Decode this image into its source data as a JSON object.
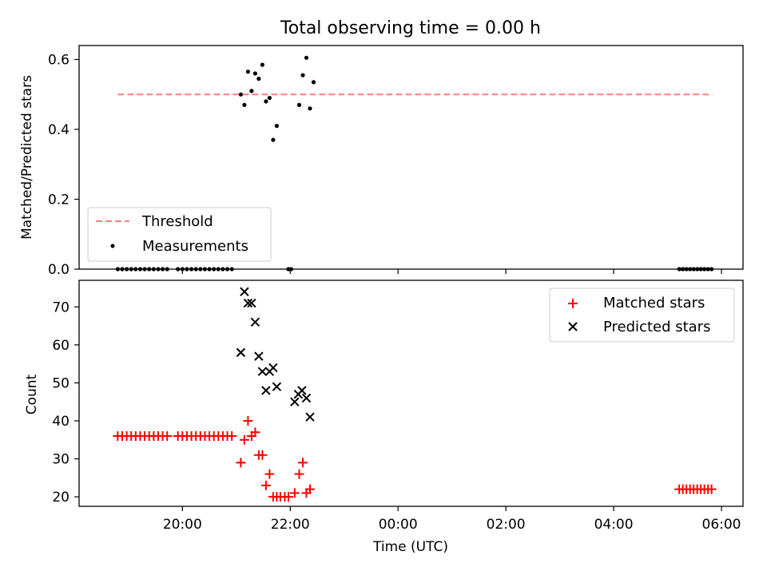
{
  "chart_data": [
    {
      "type": "scatter",
      "title": "Total observing time = 0.00 h",
      "xlabel": "",
      "ylabel": "Matched/Predicted stars",
      "ylim": [
        0,
        0.64
      ],
      "yticks": [
        0.0,
        0.2,
        0.4,
        0.6
      ],
      "ytick_labels": [
        "0.0",
        "0.2",
        "0.4",
        "0.6"
      ],
      "grid": false,
      "legend_position": "lower-left",
      "threshold": {
        "name": "Threshold",
        "y": 0.5,
        "x_start": "18:48",
        "x_end": "05:50",
        "color": "#ff7f7f"
      },
      "series": [
        {
          "name": "Measurements",
          "color": "#000000",
          "marker": "dot",
          "points": [
            [
              "18:48",
              0
            ],
            [
              "18:53",
              0
            ],
            [
              "18:58",
              0
            ],
            [
              "19:03",
              0
            ],
            [
              "19:08",
              0
            ],
            [
              "19:13",
              0
            ],
            [
              "19:18",
              0
            ],
            [
              "19:23",
              0
            ],
            [
              "19:28",
              0
            ],
            [
              "19:33",
              0
            ],
            [
              "19:38",
              0
            ],
            [
              "19:43",
              0
            ],
            [
              "19:55",
              0
            ],
            [
              "20:00",
              0
            ],
            [
              "20:05",
              0
            ],
            [
              "20:10",
              0
            ],
            [
              "20:15",
              0
            ],
            [
              "20:20",
              0
            ],
            [
              "20:25",
              0
            ],
            [
              "20:30",
              0
            ],
            [
              "20:35",
              0
            ],
            [
              "20:40",
              0
            ],
            [
              "20:45",
              0
            ],
            [
              "20:50",
              0
            ],
            [
              "20:55",
              0
            ],
            [
              "21:58",
              0
            ],
            [
              "22:01",
              0
            ],
            [
              "21:05",
              0.5
            ],
            [
              "21:09",
              0.47
            ],
            [
              "21:13",
              0.565
            ],
            [
              "21:17",
              0.51
            ],
            [
              "21:21",
              0.56
            ],
            [
              "21:25",
              0.545
            ],
            [
              "21:29",
              0.585
            ],
            [
              "21:33",
              0.48
            ],
            [
              "21:37",
              0.49
            ],
            [
              "21:41",
              0.37
            ],
            [
              "21:45",
              0.41
            ],
            [
              "22:10",
              0.47
            ],
            [
              "22:14",
              0.555
            ],
            [
              "22:18",
              0.605
            ],
            [
              "22:22",
              0.46
            ],
            [
              "22:26",
              0.535
            ],
            [
              "05:13",
              0
            ],
            [
              "05:17",
              0
            ],
            [
              "05:21",
              0
            ],
            [
              "05:25",
              0
            ],
            [
              "05:29",
              0
            ],
            [
              "05:33",
              0
            ],
            [
              "05:37",
              0
            ],
            [
              "05:41",
              0
            ],
            [
              "05:45",
              0
            ],
            [
              "05:49",
              0
            ]
          ]
        }
      ]
    },
    {
      "type": "scatter",
      "title": "",
      "xlabel": "Time (UTC)",
      "ylabel": "Count",
      "ylim": [
        17.5,
        77
      ],
      "yticks": [
        20,
        30,
        40,
        50,
        60,
        70
      ],
      "ytick_labels": [
        "20",
        "30",
        "40",
        "50",
        "60",
        "70"
      ],
      "xticks": [
        "20:00",
        "22:00",
        "00:00",
        "02:00",
        "04:00",
        "06:00"
      ],
      "grid": false,
      "legend_position": "upper-right",
      "series": [
        {
          "name": "Matched stars",
          "color": "#ff0000",
          "marker": "plus",
          "points": [
            [
              "18:48",
              36
            ],
            [
              "18:53",
              36
            ],
            [
              "18:58",
              36
            ],
            [
              "19:03",
              36
            ],
            [
              "19:08",
              36
            ],
            [
              "19:13",
              36
            ],
            [
              "19:18",
              36
            ],
            [
              "19:23",
              36
            ],
            [
              "19:28",
              36
            ],
            [
              "19:33",
              36
            ],
            [
              "19:38",
              36
            ],
            [
              "19:43",
              36
            ],
            [
              "19:55",
              36
            ],
            [
              "20:00",
              36
            ],
            [
              "20:05",
              36
            ],
            [
              "20:10",
              36
            ],
            [
              "20:15",
              36
            ],
            [
              "20:20",
              36
            ],
            [
              "20:25",
              36
            ],
            [
              "20:30",
              36
            ],
            [
              "20:35",
              36
            ],
            [
              "20:40",
              36
            ],
            [
              "20:45",
              36
            ],
            [
              "20:50",
              36
            ],
            [
              "20:55",
              36
            ],
            [
              "21:05",
              29
            ],
            [
              "21:09",
              35
            ],
            [
              "21:13",
              40
            ],
            [
              "21:17",
              36
            ],
            [
              "21:21",
              37
            ],
            [
              "21:25",
              31
            ],
            [
              "21:29",
              31
            ],
            [
              "21:33",
              23
            ],
            [
              "21:37",
              26
            ],
            [
              "21:41",
              20
            ],
            [
              "21:45",
              20
            ],
            [
              "21:49",
              20
            ],
            [
              "21:54",
              20
            ],
            [
              "21:58",
              20
            ],
            [
              "22:05",
              21
            ],
            [
              "22:10",
              26
            ],
            [
              "22:14",
              29
            ],
            [
              "22:18",
              21
            ],
            [
              "22:22",
              22
            ],
            [
              "05:13",
              22
            ],
            [
              "05:17",
              22
            ],
            [
              "05:21",
              22
            ],
            [
              "05:25",
              22
            ],
            [
              "05:29",
              22
            ],
            [
              "05:33",
              22
            ],
            [
              "05:37",
              22
            ],
            [
              "05:41",
              22
            ],
            [
              "05:45",
              22
            ],
            [
              "05:49",
              22
            ]
          ]
        },
        {
          "name": "Predicted stars",
          "color": "#000000",
          "marker": "x",
          "points": [
            [
              "21:05",
              58
            ],
            [
              "21:09",
              74
            ],
            [
              "21:13",
              71
            ],
            [
              "21:17",
              71
            ],
            [
              "21:21",
              66
            ],
            [
              "21:25",
              57
            ],
            [
              "21:29",
              53
            ],
            [
              "21:33",
              48
            ],
            [
              "21:37",
              53
            ],
            [
              "21:41",
              54
            ],
            [
              "21:45",
              49
            ],
            [
              "22:05",
              45
            ],
            [
              "22:09",
              47
            ],
            [
              "22:13",
              48
            ],
            [
              "22:18",
              46
            ],
            [
              "22:22",
              41
            ]
          ]
        }
      ]
    }
  ]
}
